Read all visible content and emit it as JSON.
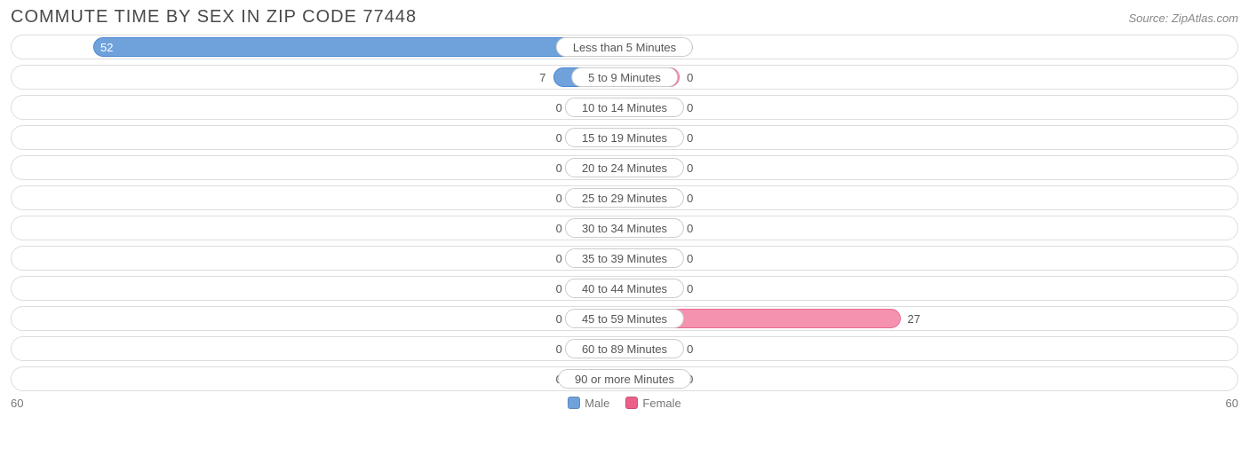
{
  "title": "COMMUTE TIME BY SEX IN ZIP CODE 77448",
  "source": "Source: ZipAtlas.com",
  "axis_max": 60,
  "axis_left_label": "60",
  "axis_right_label": "60",
  "min_bar_pct": 9,
  "colors": {
    "male_fill": "#6fa1db",
    "male_border": "#4a86cf",
    "female_fill": "#f492b0",
    "female_border": "#ec6a92",
    "row_border": "#dddddd",
    "text": "#555555",
    "bg": "#ffffff"
  },
  "legend": [
    {
      "label": "Male",
      "color": "#6fa1db"
    },
    {
      "label": "Female",
      "color": "#ec5f89"
    }
  ],
  "rows": [
    {
      "category": "Less than 5 Minutes",
      "male": 52,
      "female": 0
    },
    {
      "category": "5 to 9 Minutes",
      "male": 7,
      "female": 0
    },
    {
      "category": "10 to 14 Minutes",
      "male": 0,
      "female": 0
    },
    {
      "category": "15 to 19 Minutes",
      "male": 0,
      "female": 0
    },
    {
      "category": "20 to 24 Minutes",
      "male": 0,
      "female": 0
    },
    {
      "category": "25 to 29 Minutes",
      "male": 0,
      "female": 0
    },
    {
      "category": "30 to 34 Minutes",
      "male": 0,
      "female": 0
    },
    {
      "category": "35 to 39 Minutes",
      "male": 0,
      "female": 0
    },
    {
      "category": "40 to 44 Minutes",
      "male": 0,
      "female": 0
    },
    {
      "category": "45 to 59 Minutes",
      "male": 0,
      "female": 27
    },
    {
      "category": "60 to 89 Minutes",
      "male": 0,
      "female": 0
    },
    {
      "category": "90 or more Minutes",
      "male": 0,
      "female": 0
    }
  ]
}
